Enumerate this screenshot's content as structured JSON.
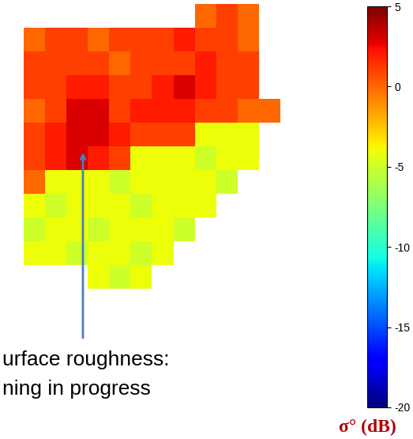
{
  "chart_data": {
    "type": "heatmap",
    "cells": [
      [
        null,
        null,
        null,
        null,
        null,
        null,
        null,
        null,
        0,
        1,
        0,
        null
      ],
      [
        0,
        1,
        1,
        0,
        1,
        1,
        1,
        2,
        1,
        1,
        0,
        null
      ],
      [
        1,
        1,
        1,
        1,
        0,
        1,
        1,
        1,
        2,
        1,
        1,
        null
      ],
      [
        1,
        1,
        2,
        2,
        1,
        1,
        2,
        3,
        2,
        1,
        1,
        null
      ],
      [
        0,
        1,
        3,
        3,
        1,
        2,
        2,
        2,
        1,
        1,
        0,
        0
      ],
      [
        1,
        2,
        3,
        3,
        2,
        1,
        1,
        1,
        -4,
        -4,
        -4,
        null
      ],
      [
        1,
        2,
        3,
        2,
        1,
        -4,
        -4,
        -4,
        -5,
        -4,
        -4,
        null
      ],
      [
        0,
        -4,
        -4,
        -4,
        -5,
        -4,
        -4,
        -4,
        -4,
        -5,
        null,
        null
      ],
      [
        -4,
        -5,
        -4,
        -4,
        -4,
        -5,
        -4,
        -4,
        -4,
        null,
        null,
        null
      ],
      [
        -5,
        -4,
        -4,
        -5,
        -4,
        -4,
        -4,
        -5,
        null,
        null,
        null,
        null
      ],
      [
        -4,
        -4,
        -5,
        -4,
        -4,
        -5,
        -4,
        null,
        null,
        null,
        null,
        null
      ],
      [
        null,
        null,
        null,
        -4,
        -5,
        -4,
        null,
        null,
        null,
        null,
        null,
        null
      ]
    ],
    "colorbar_range": [
      -20,
      5
    ],
    "colorbar_ticks": [
      -20,
      -15,
      -10,
      -5,
      0,
      5
    ],
    "colorbar_label": "σ° (dB)",
    "annotations": [
      "urface roughness:",
      "ning in progress"
    ],
    "tick_labels": false
  }
}
